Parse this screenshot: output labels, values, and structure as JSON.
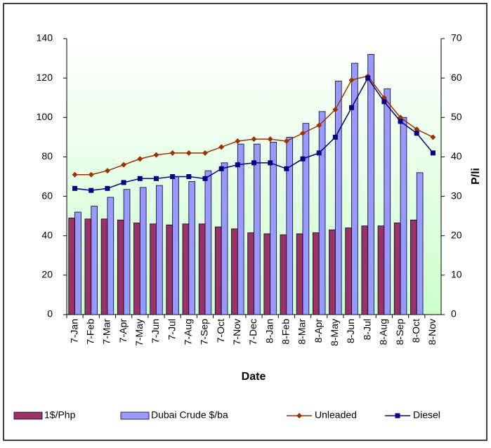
{
  "chart_data": {
    "type": "bar-line",
    "xlabel": "Date",
    "y2label": "P/li",
    "categories": [
      "7-Jan",
      "7-Feb",
      "7-Mar",
      "7-Apr",
      "7-May",
      "7-Jun",
      "7-Jul",
      "7-Aug",
      "7-Sep",
      "7-Oct",
      "7-Nov",
      "7-Dec",
      "8-Jan",
      "8-Feb",
      "8-Mar",
      "8-Apr",
      "8-May",
      "8-Jun",
      "8-Jul",
      "8-Aug",
      "8-Sep",
      "8-Oct",
      "8-Nov"
    ],
    "series": [
      {
        "name": "1$/Php",
        "type": "bar",
        "color": "#993366",
        "values": [
          49,
          48.5,
          48.5,
          48,
          46.5,
          46,
          45.5,
          46,
          46,
          44.5,
          43.5,
          41.5,
          41,
          40.5,
          41,
          41.5,
          43,
          44,
          45,
          45,
          46.5,
          48,
          null
        ]
      },
      {
        "name": "Dubai Crude $/ba",
        "type": "bar",
        "color": "#9999ff",
        "values": [
          52,
          55,
          59.5,
          63.5,
          64.5,
          65.5,
          70,
          67.5,
          73,
          77,
          86.5,
          86.5,
          87.5,
          90,
          97,
          103,
          118.5,
          127.5,
          132,
          114.5,
          100,
          72,
          null
        ]
      },
      {
        "name": "Unleaded",
        "type": "line",
        "axis": "y2",
        "color": "#993300",
        "marker": "diamond",
        "values": [
          35.5,
          35.5,
          36.5,
          38,
          39.5,
          40.5,
          41,
          41,
          41,
          42.5,
          44,
          44.5,
          44.5,
          44,
          46,
          48,
          52,
          59.5,
          60.5,
          55,
          50,
          47,
          45
        ]
      },
      {
        "name": "Diesel",
        "type": "line",
        "axis": "y2",
        "color": "#000080",
        "marker": "square",
        "values": [
          32,
          31.5,
          32,
          33.5,
          34.5,
          34.5,
          35,
          35,
          34.5,
          37,
          38,
          38.5,
          38.5,
          37,
          39.5,
          41,
          45,
          52.5,
          60,
          54,
          49,
          46,
          41
        ]
      }
    ],
    "ylim": [
      0,
      140
    ],
    "yticks": [
      0,
      20,
      40,
      60,
      80,
      100,
      120,
      140
    ],
    "y2lim": [
      0,
      70
    ],
    "y2ticks": [
      0,
      10,
      20,
      30,
      40,
      50,
      60,
      70
    ],
    "legend": "bottom"
  }
}
